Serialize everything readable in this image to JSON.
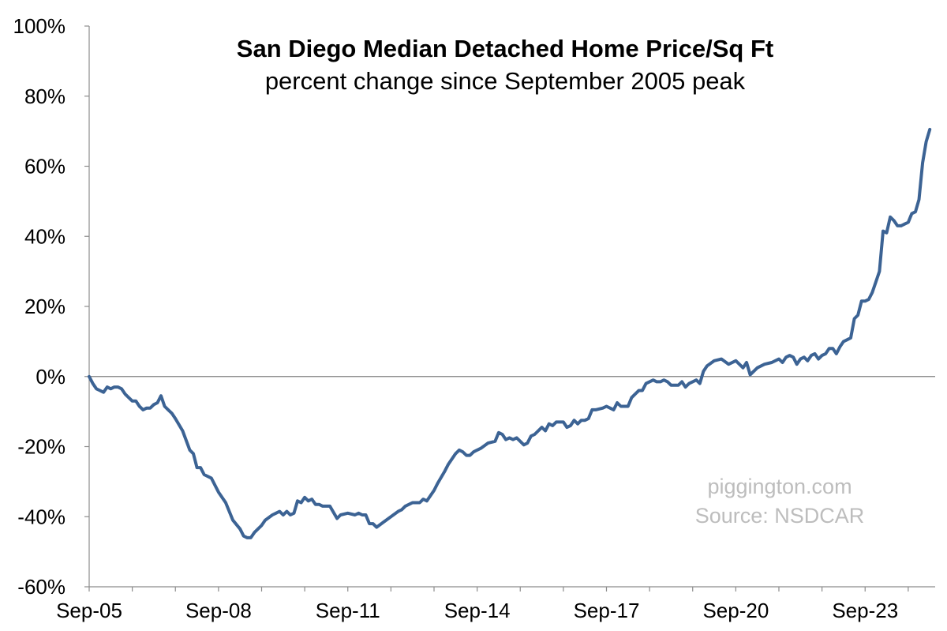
{
  "chart_data": {
    "type": "line",
    "title": "San Diego Median Detached Home Price/Sq Ft",
    "subtitle": "percent change since September 2005 peak",
    "xlabel": "",
    "ylabel": "",
    "ylim": [
      -60,
      100
    ],
    "y_ticks": [
      -60,
      -40,
      -20,
      0,
      20,
      40,
      60,
      80,
      100
    ],
    "y_tick_labels": [
      "-60%",
      "-40%",
      "-20%",
      "0%",
      "20%",
      "40%",
      "60%",
      "80%",
      "100%"
    ],
    "x_start": "2005-09",
    "x_end": "2025-03",
    "x_tick_labels": [
      "Sep-05",
      "Sep-08",
      "Sep-11",
      "Sep-14",
      "Sep-17",
      "Sep-20",
      "Sep-23"
    ],
    "grid": false,
    "zero_line": true,
    "series": [
      {
        "name": "",
        "color": "#3c6394",
        "anchors": [
          [
            "2005-09",
            0
          ],
          [
            "2005-10",
            -2
          ],
          [
            "2005-11",
            -3.5
          ],
          [
            "2005-12",
            -4
          ],
          [
            "2006-01",
            -4.5
          ],
          [
            "2006-02",
            -3
          ],
          [
            "2006-03",
            -3.5
          ],
          [
            "2006-04",
            -3
          ],
          [
            "2006-05",
            -3
          ],
          [
            "2006-06",
            -3.5
          ],
          [
            "2006-07",
            -5
          ],
          [
            "2006-09",
            -7
          ],
          [
            "2006-10",
            -7
          ],
          [
            "2006-11",
            -8.5
          ],
          [
            "2006-12",
            -9.5
          ],
          [
            "2007-01",
            -9
          ],
          [
            "2007-02",
            -9
          ],
          [
            "2007-03",
            -8
          ],
          [
            "2007-04",
            -7.5
          ],
          [
            "2007-05",
            -5.5
          ],
          [
            "2007-06",
            -8.5
          ],
          [
            "2007-07",
            -9.5
          ],
          [
            "2007-08",
            -10.5
          ],
          [
            "2007-09",
            -12
          ],
          [
            "2007-11",
            -15.5
          ],
          [
            "2008-01",
            -21
          ],
          [
            "2008-02",
            -22
          ],
          [
            "2008-03",
            -26
          ],
          [
            "2008-04",
            -26
          ],
          [
            "2008-05",
            -28
          ],
          [
            "2008-07",
            -29
          ],
          [
            "2008-09",
            -33
          ],
          [
            "2008-11",
            -36
          ],
          [
            "2009-01",
            -41
          ],
          [
            "2009-03",
            -43.5
          ],
          [
            "2009-04",
            -45.5
          ],
          [
            "2009-05",
            -46
          ],
          [
            "2009-06",
            -46
          ],
          [
            "2009-07",
            -44.5
          ],
          [
            "2009-09",
            -42.5
          ],
          [
            "2009-10",
            -41
          ],
          [
            "2009-12",
            -39.5
          ],
          [
            "2010-01",
            -39
          ],
          [
            "2010-02",
            -38.5
          ],
          [
            "2010-03",
            -39.5
          ],
          [
            "2010-04",
            -38.5
          ],
          [
            "2010-05",
            -39.5
          ],
          [
            "2010-06",
            -39
          ],
          [
            "2010-07",
            -35.5
          ],
          [
            "2010-08",
            -36
          ],
          [
            "2010-09",
            -34.5
          ],
          [
            "2010-10",
            -35.5
          ],
          [
            "2010-11",
            -35
          ],
          [
            "2010-12",
            -36.5
          ],
          [
            "2011-01",
            -36.5
          ],
          [
            "2011-02",
            -37
          ],
          [
            "2011-04",
            -37
          ],
          [
            "2011-06",
            -40.5
          ],
          [
            "2011-07",
            -39.5
          ],
          [
            "2011-09",
            -39
          ],
          [
            "2011-11",
            -39.5
          ],
          [
            "2011-12",
            -39
          ],
          [
            "2012-01",
            -39.5
          ],
          [
            "2012-02",
            -39.5
          ],
          [
            "2012-03",
            -42
          ],
          [
            "2012-04",
            -42
          ],
          [
            "2012-05",
            -43
          ],
          [
            "2012-07",
            -41.5
          ],
          [
            "2012-09",
            -40
          ],
          [
            "2012-11",
            -38.5
          ],
          [
            "2012-12",
            -38
          ],
          [
            "2013-01",
            -37
          ],
          [
            "2013-03",
            -36
          ],
          [
            "2013-05",
            -36
          ],
          [
            "2013-06",
            -35
          ],
          [
            "2013-07",
            -35.5
          ],
          [
            "2013-09",
            -32.5
          ],
          [
            "2013-10",
            -30.5
          ],
          [
            "2013-12",
            -27
          ],
          [
            "2014-01",
            -25
          ],
          [
            "2014-03",
            -22
          ],
          [
            "2014-04",
            -21
          ],
          [
            "2014-05",
            -21.5
          ],
          [
            "2014-06",
            -22.5
          ],
          [
            "2014-07",
            -22.5
          ],
          [
            "2014-08",
            -21.5
          ],
          [
            "2014-09",
            -21
          ],
          [
            "2014-10",
            -20.5
          ],
          [
            "2014-12",
            -19
          ],
          [
            "2015-02",
            -18.5
          ],
          [
            "2015-03",
            -16
          ],
          [
            "2015-04",
            -16.5
          ],
          [
            "2015-05",
            -18
          ],
          [
            "2015-06",
            -17.5
          ],
          [
            "2015-07",
            -18
          ],
          [
            "2015-08",
            -17.5
          ],
          [
            "2015-09",
            -18.5
          ],
          [
            "2015-10",
            -19.5
          ],
          [
            "2015-11",
            -19
          ],
          [
            "2015-12",
            -17
          ],
          [
            "2016-01",
            -16.5
          ],
          [
            "2016-03",
            -14.5
          ],
          [
            "2016-04",
            -15.5
          ],
          [
            "2016-05",
            -13.5
          ],
          [
            "2016-06",
            -14
          ],
          [
            "2016-07",
            -13
          ],
          [
            "2016-09",
            -13
          ],
          [
            "2016-10",
            -14.5
          ],
          [
            "2016-11",
            -14
          ],
          [
            "2016-12",
            -12.5
          ],
          [
            "2017-01",
            -13.5
          ],
          [
            "2017-02",
            -12.5
          ],
          [
            "2017-03",
            -12.5
          ],
          [
            "2017-04",
            -12
          ],
          [
            "2017-05",
            -9.5
          ],
          [
            "2017-06",
            -9.5
          ],
          [
            "2017-08",
            -9
          ],
          [
            "2017-09",
            -8.5
          ],
          [
            "2017-10",
            -9
          ],
          [
            "2017-11",
            -9.5
          ],
          [
            "2017-12",
            -7.5
          ],
          [
            "2018-01",
            -8.5
          ],
          [
            "2018-02",
            -8.5
          ],
          [
            "2018-03",
            -8.5
          ],
          [
            "2018-04",
            -6
          ],
          [
            "2018-05",
            -5
          ],
          [
            "2018-06",
            -4
          ],
          [
            "2018-07",
            -4
          ],
          [
            "2018-08",
            -2
          ],
          [
            "2018-09",
            -1.5
          ],
          [
            "2018-10",
            -1
          ],
          [
            "2018-11",
            -1.5
          ],
          [
            "2018-12",
            -1.5
          ],
          [
            "2019-01",
            -1
          ],
          [
            "2019-02",
            -1.5
          ],
          [
            "2019-03",
            -2.5
          ],
          [
            "2019-04",
            -2.5
          ],
          [
            "2019-05",
            -2.5
          ],
          [
            "2019-06",
            -1.5
          ],
          [
            "2019-07",
            -3
          ],
          [
            "2019-08",
            -2
          ],
          [
            "2019-09",
            -1.5
          ],
          [
            "2019-10",
            -1
          ],
          [
            "2019-11",
            -2
          ],
          [
            "2019-12",
            1.5
          ],
          [
            "2020-01",
            3
          ],
          [
            "2020-03",
            4.5
          ],
          [
            "2020-05",
            5
          ],
          [
            "2020-07",
            3.5
          ],
          [
            "2020-09",
            4.5
          ],
          [
            "2020-10",
            3.5
          ],
          [
            "2020-11",
            2.5
          ],
          [
            "2020-12",
            4
          ],
          [
            "2021-01",
            0.5
          ],
          [
            "2021-03",
            2.5
          ],
          [
            "2021-05",
            3.5
          ],
          [
            "2021-07",
            4
          ],
          [
            "2021-09",
            5
          ],
          [
            "2021-10",
            4
          ],
          [
            "2021-11",
            5.5
          ],
          [
            "2021-12",
            6
          ],
          [
            "2022-01",
            5.5
          ],
          [
            "2022-02",
            3.5
          ],
          [
            "2022-03",
            5
          ],
          [
            "2022-04",
            5.5
          ],
          [
            "2022-05",
            4.5
          ],
          [
            "2022-06",
            6
          ],
          [
            "2022-07",
            6.5
          ],
          [
            "2022-08",
            5
          ],
          [
            "2022-09",
            6
          ],
          [
            "2022-10",
            6.5
          ],
          [
            "2022-11",
            8
          ],
          [
            "2022-12",
            8
          ],
          [
            "2023-01",
            6.5
          ],
          [
            "2023-02",
            8.5
          ],
          [
            "2023-03",
            10
          ],
          [
            "2023-04",
            10.5
          ],
          [
            "2023-05",
            11
          ],
          [
            "2023-06",
            16.5
          ],
          [
            "2023-07",
            17.5
          ],
          [
            "2023-08",
            21.5
          ],
          [
            "2023-09",
            21.5
          ],
          [
            "2023-10",
            22
          ],
          [
            "2023-11",
            24
          ],
          [
            "2023-12",
            27
          ],
          [
            "2024-01",
            30
          ],
          [
            "2024-02",
            41.5
          ],
          [
            "2024-03",
            41
          ],
          [
            "2024-04",
            45.5
          ],
          [
            "2024-05",
            44.5
          ],
          [
            "2024-06",
            43
          ],
          [
            "2024-07",
            43
          ],
          [
            "2024-08",
            43.5
          ],
          [
            "2024-09",
            44
          ],
          [
            "2024-10",
            46.5
          ],
          [
            "2024-11",
            47
          ],
          [
            "2024-12",
            50.5
          ],
          [
            "2025-01",
            61
          ],
          [
            "2025-02",
            67
          ],
          [
            "2025-03",
            70.5
          ]
        ]
      }
    ]
  },
  "watermark": {
    "site": "piggington.com",
    "source": "Source: NSDCAR"
  }
}
